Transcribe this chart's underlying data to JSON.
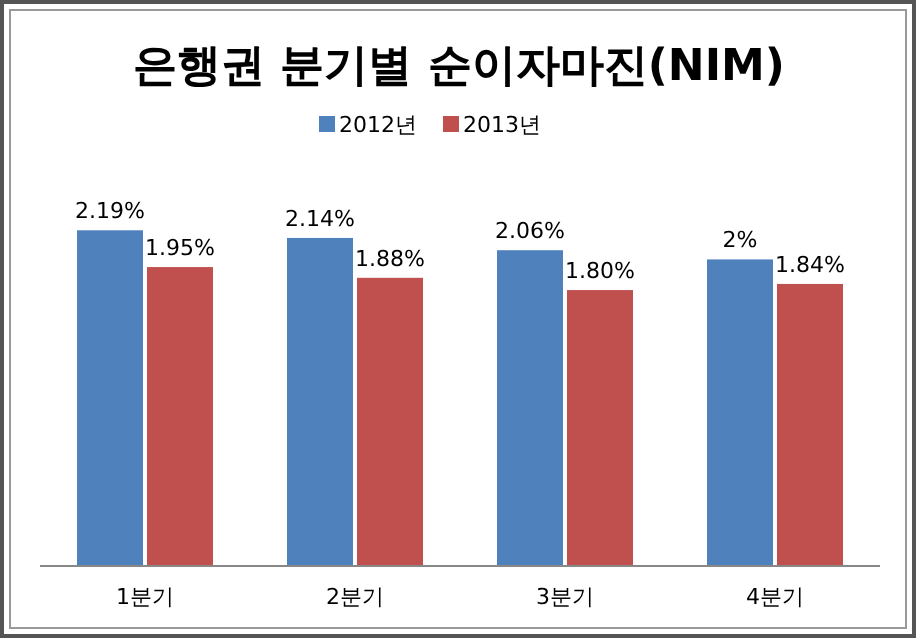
{
  "chart_data": {
    "type": "bar",
    "title": "은행권 분기별 순이자마진(NIM)",
    "categories": [
      "1분기",
      "2분기",
      "3분기",
      "4분기"
    ],
    "legend": "top",
    "series": [
      {
        "name": "2012년",
        "color": "#4f81bd",
        "values": [
          2.19,
          2.14,
          2.06,
          2
        ],
        "value_labels": [
          "2.19%",
          "2.14%",
          "2.06%",
          "2%"
        ]
      },
      {
        "name": "2013년",
        "color": "#c0504d",
        "values": [
          1.95,
          1.88,
          1.8,
          1.84
        ],
        "value_labels": [
          "1.95%",
          "1.88%",
          "1.80%",
          "1.84%"
        ]
      }
    ]
  }
}
